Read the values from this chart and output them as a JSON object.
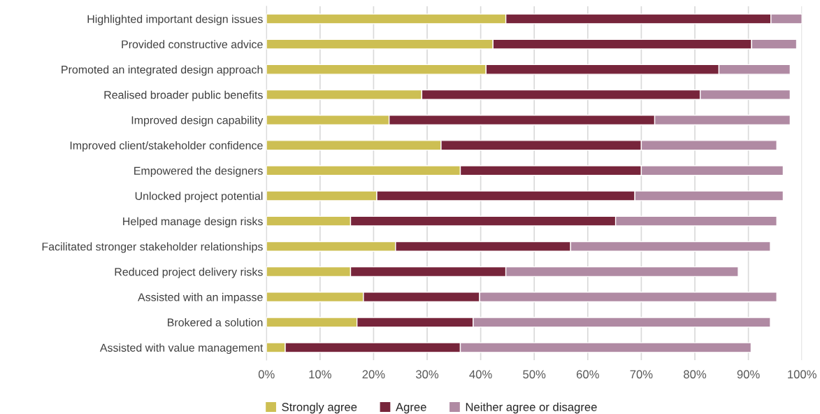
{
  "chart_data": {
    "type": "bar",
    "orientation": "horizontal",
    "stacked": true,
    "categories": [
      "Highlighted important design issues",
      "Provided constructive advice",
      "Promoted an integrated design approach",
      "Realised broader public benefits",
      "Improved design capability",
      "Improved client/stakeholder confidence",
      "Empowered the designers",
      "Unlocked project potential",
      "Helped manage design risks",
      "Facilitated stronger stakeholder relationships",
      "Reduced project delivery risks",
      "Assisted with an impasse",
      "Brokered a solution",
      "Assisted with value management"
    ],
    "series": [
      {
        "name": "Strongly agree",
        "color": "#cdbf53",
        "values": [
          44.7,
          42.3,
          41.0,
          29.0,
          22.9,
          32.6,
          36.2,
          20.6,
          15.7,
          24.1,
          15.7,
          18.1,
          16.9,
          3.5
        ]
      },
      {
        "name": "Agree",
        "color": "#77253b",
        "values": [
          49.5,
          48.3,
          43.5,
          52.0,
          49.6,
          37.4,
          33.8,
          48.2,
          49.5,
          32.7,
          29.0,
          21.7,
          21.7,
          32.7
        ]
      },
      {
        "name": "Neither agree or disagree",
        "color": "#b08aa3",
        "values": [
          5.8,
          8.4,
          13.3,
          16.8,
          25.3,
          25.3,
          26.5,
          27.7,
          30.1,
          37.3,
          43.4,
          55.5,
          55.5,
          54.3
        ]
      }
    ],
    "xlim": [
      0,
      100
    ],
    "xticks": [
      {
        "value": 0,
        "label": "0%"
      },
      {
        "value": 10,
        "label": "10%"
      },
      {
        "value": 20,
        "label": "20%"
      },
      {
        "value": 30,
        "label": "30%"
      },
      {
        "value": 40,
        "label": "40%"
      },
      {
        "value": 50,
        "label": "50%"
      },
      {
        "value": 60,
        "label": "60%"
      },
      {
        "value": 70,
        "label": "70%"
      },
      {
        "value": 80,
        "label": "80%"
      },
      {
        "value": 90,
        "label": "90%"
      },
      {
        "value": 100,
        "label": "100%"
      }
    ],
    "grid": "x",
    "legend": "bottom"
  }
}
